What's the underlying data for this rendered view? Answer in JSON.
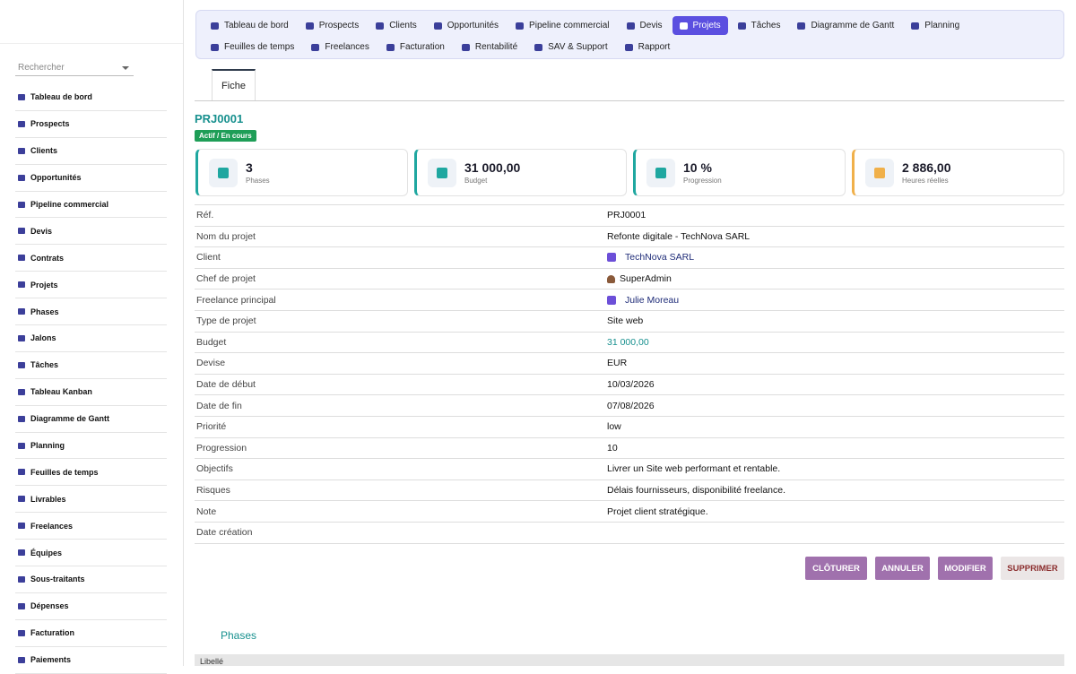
{
  "sidebar": {
    "search_placeholder": "Rechercher",
    "items": [
      "Tableau de bord",
      "Prospects",
      "Clients",
      "Opportunités",
      "Pipeline commercial",
      "Devis",
      "Contrats",
      "Projets",
      "Phases",
      "Jalons",
      "Tâches",
      "Tableau Kanban",
      "Diagramme de Gantt",
      "Planning",
      "Feuilles de temps",
      "Livrables",
      "Freelances",
      "Équipes",
      "Sous-traitants",
      "Dépenses",
      "Facturation",
      "Paiements"
    ]
  },
  "topnav": {
    "items": [
      {
        "label": "Tableau de bord"
      },
      {
        "label": "Prospects"
      },
      {
        "label": "Clients"
      },
      {
        "label": "Opportunités"
      },
      {
        "label": "Pipeline commercial"
      },
      {
        "label": "Devis"
      },
      {
        "label": "Projets",
        "active": true
      },
      {
        "label": "Tâches"
      },
      {
        "label": "Diagramme de Gantt"
      },
      {
        "label": "Planning"
      },
      {
        "label": "Feuilles de temps"
      },
      {
        "label": "Freelances"
      },
      {
        "label": "Facturation"
      },
      {
        "label": "Rentabilité"
      },
      {
        "label": "SAV & Support"
      },
      {
        "label": "Rapport"
      }
    ]
  },
  "tab": "Fiche",
  "project": {
    "ref": "PRJ0001",
    "status": "Actif / En cours"
  },
  "kpis": [
    {
      "value": "3",
      "label": "Phases",
      "accent": "#1fa7a0"
    },
    {
      "value": "31 000,00",
      "label": "Budget",
      "accent": "#1fa7a0"
    },
    {
      "value": "10 %",
      "label": "Progression",
      "accent": "#1fa7a0"
    },
    {
      "value": "2 886,00",
      "label": "Heures réelles",
      "accent": "#f0b04a"
    }
  ],
  "fields": [
    {
      "label": "Réf.",
      "value": "PRJ0001"
    },
    {
      "label": "Nom du projet",
      "value": "Refonte digitale - TechNova SARL"
    },
    {
      "label": "Client",
      "value": "TechNova SARL",
      "style": "link"
    },
    {
      "label": "Chef de projet",
      "value": "SuperAdmin",
      "style": "user"
    },
    {
      "label": "Freelance principal",
      "value": "Julie Moreau",
      "style": "link"
    },
    {
      "label": "Type de projet",
      "value": "Site web"
    },
    {
      "label": "Budget",
      "value": "31 000,00",
      "style": "amount"
    },
    {
      "label": "Devise",
      "value": "EUR"
    },
    {
      "label": "Date de début",
      "value": "10/03/2026"
    },
    {
      "label": "Date de fin",
      "value": "07/08/2026"
    },
    {
      "label": "Priorité",
      "value": "low"
    },
    {
      "label": "Progression",
      "value": "10"
    },
    {
      "label": "Objectifs",
      "value": "Livrer un Site web performant et rentable."
    },
    {
      "label": "Risques",
      "value": "Délais fournisseurs, disponibilité freelance."
    },
    {
      "label": "Note",
      "value": "Projet client stratégique."
    },
    {
      "label": "Date création",
      "value": ""
    }
  ],
  "buttons": [
    "CLÔTURER",
    "ANNULER",
    "MODIFIER",
    "SUPPRIMER"
  ],
  "phases": {
    "title": "Phases",
    "header": "Libellé"
  }
}
